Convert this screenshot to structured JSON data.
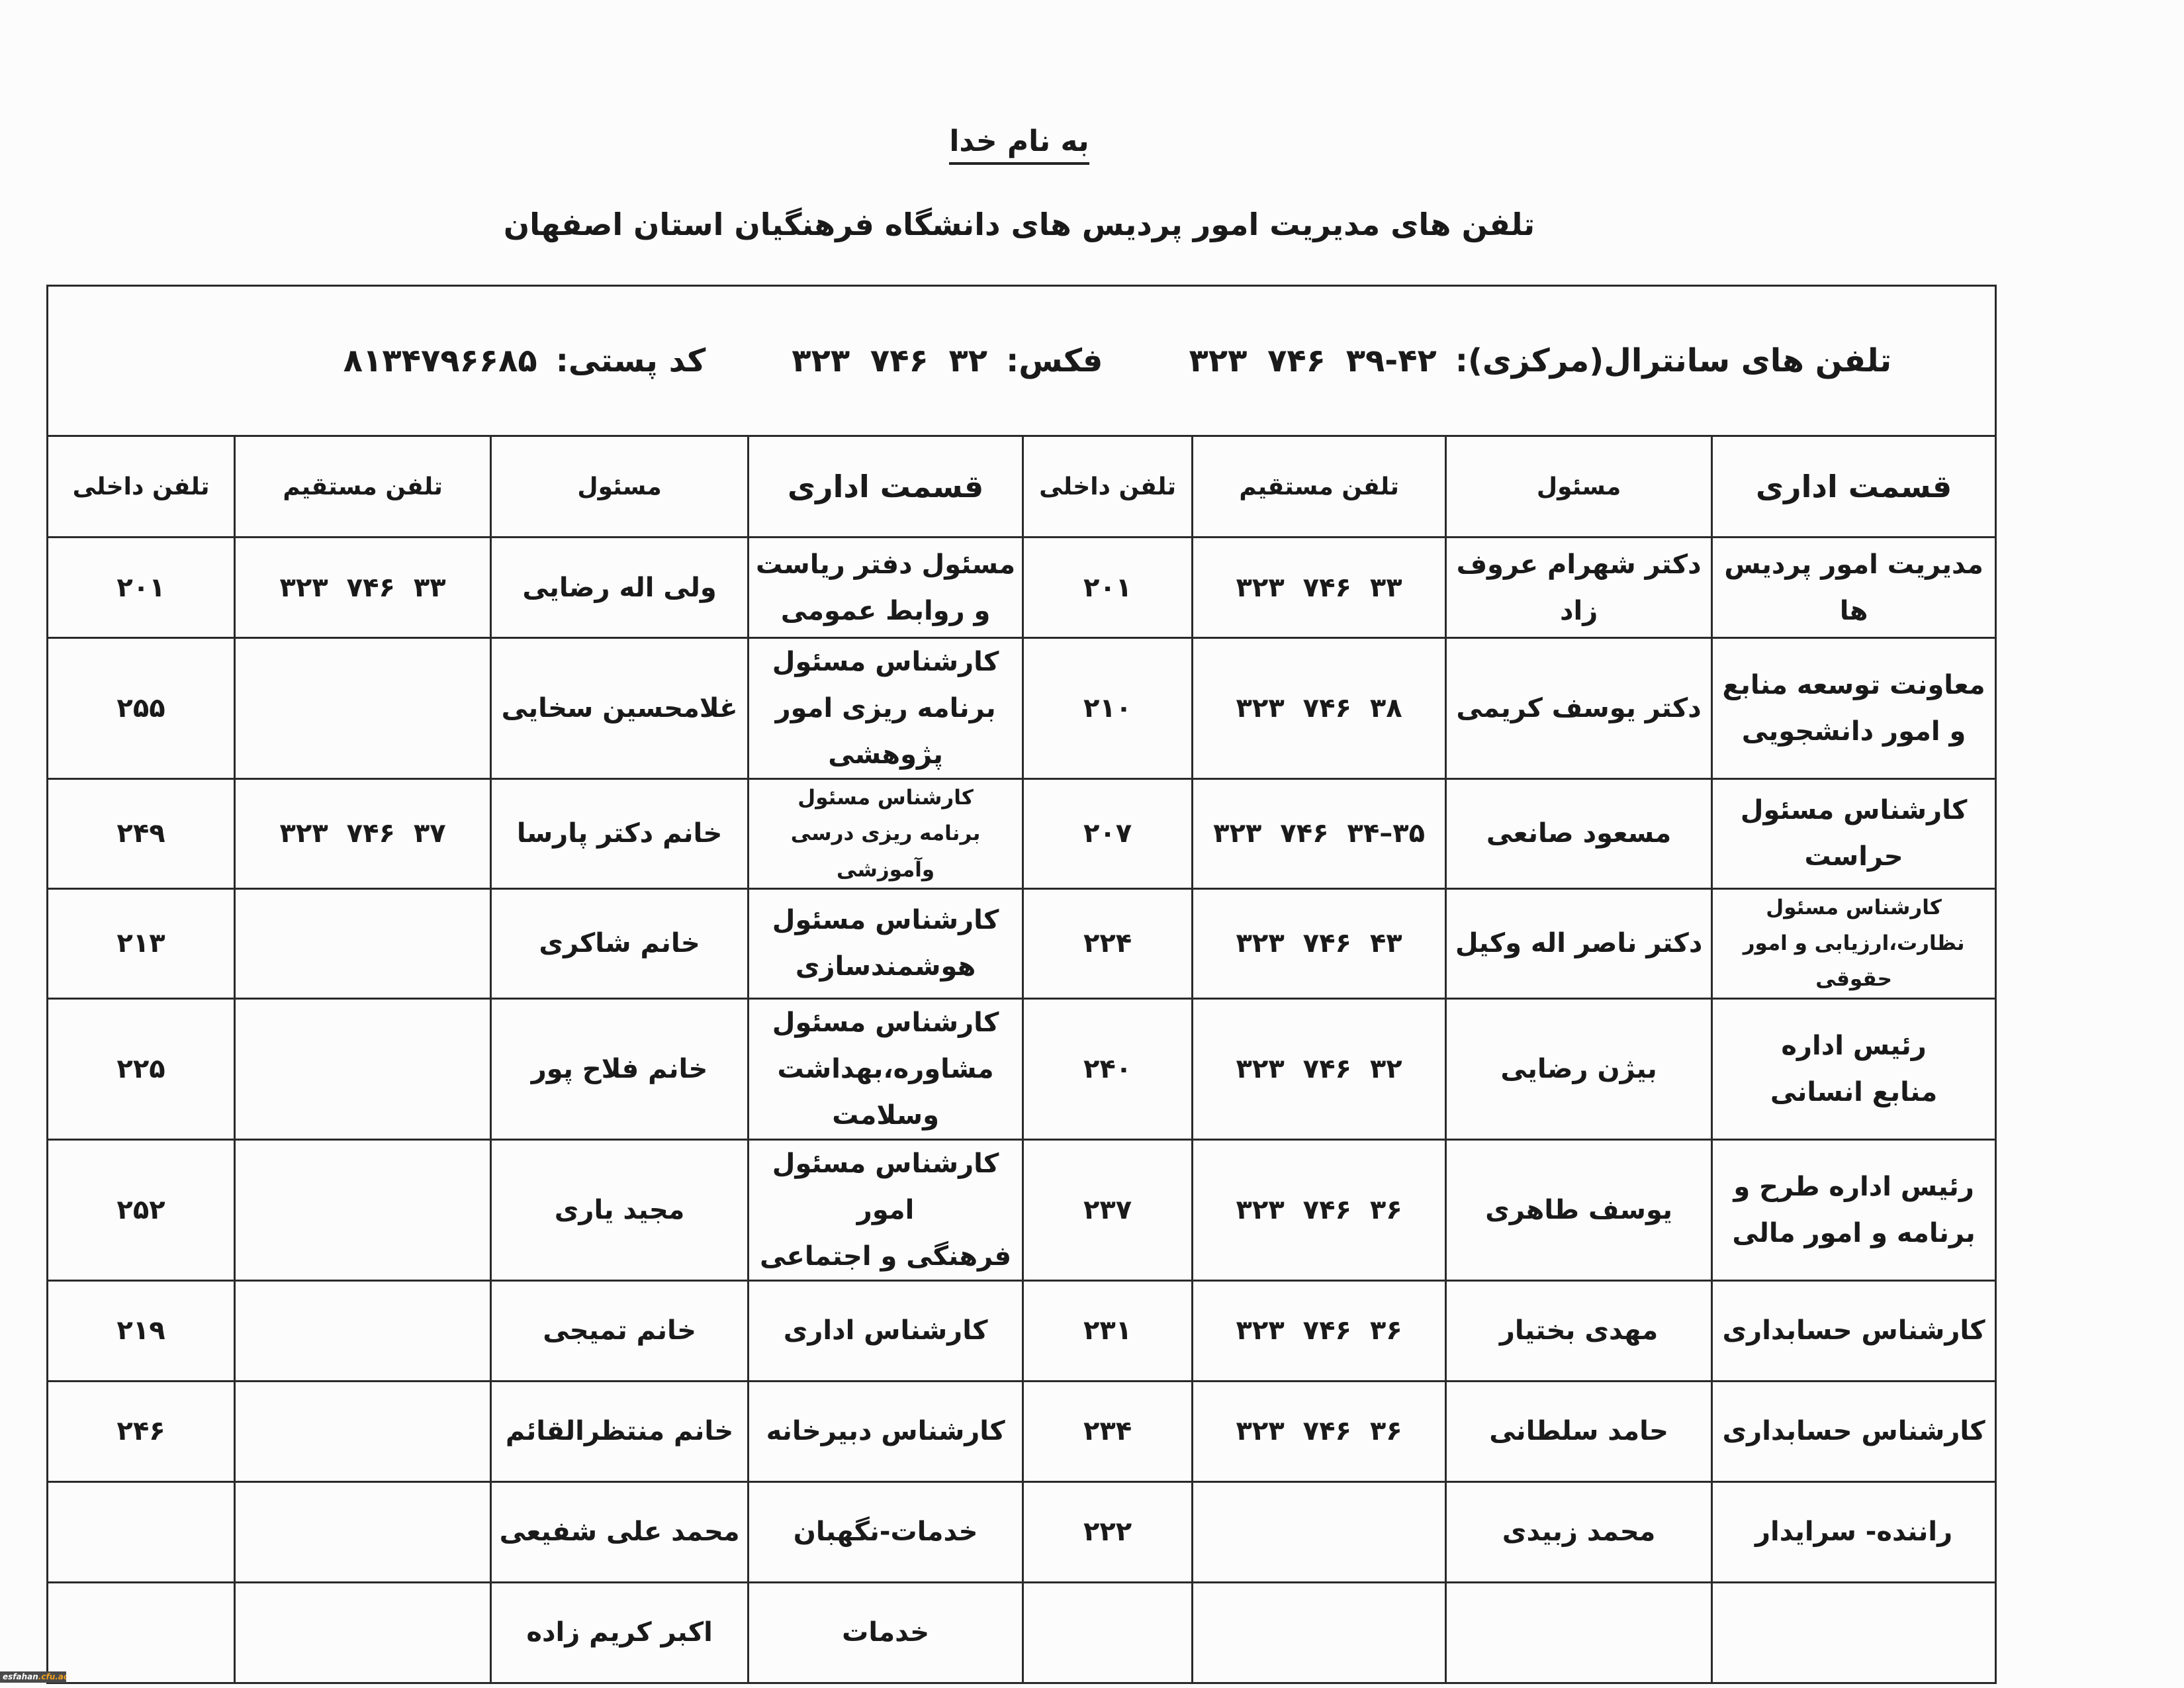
{
  "header": {
    "basmala": "به نام خدا",
    "title": "تلفن های مدیریت امور پردیس های دانشگاه  فرهنگیان استان اصفهان"
  },
  "info": {
    "central_label": "تلفن های سانترال(مرکزی):",
    "central_number": "۳۲۳ ۷۴۶ ۳۹-۴۲",
    "fax_label": "فکس:",
    "fax_number": "۳۲۳ ۷۴۶ ۳۲",
    "postal_label": "کد پستی:",
    "postal_number": "۸۱۳۴۷۹۶۶۸۵"
  },
  "columns": [
    "قسمت اداری",
    "مسئول",
    "تلفن مستقیم",
    "تلفن داخلی",
    "قسمت اداری",
    "مسئول",
    "تلفن مستقیم",
    "تلفن داخلی"
  ],
  "rows": [
    [
      "مدیریت امور پردیس ها",
      "دکتر شهرام عروف زاد",
      "۳۲۳ ۷۴۶ ۳۳",
      "۲۰۱",
      "مسئول دفتر ریاست\nو روابط عمومی",
      "ولی اله رضایی",
      "۳۲۳ ۷۴۶ ۳۳",
      "۲۰۱"
    ],
    [
      "معاونت  توسعه منابع\nو امور دانشجویی",
      "دکتر یوسف کریمی",
      "۳۲۳ ۷۴۶ ۳۸",
      "۲۱۰",
      "کارشناس مسئول\nبرنامه ریزی امور پژوهشی",
      "غلامحسین سخایی",
      "",
      "۲۵۵"
    ],
    [
      "کارشناس مسئول\nحراست",
      "مسعود صانعی",
      "۳۲۳ ۷۴۶ ۳۴–۳۵",
      "۲۰۷",
      "کارشناس مسئول\nبرنامه ریزی درسی وآموزشی",
      "خانم دکتر پارسا",
      "۳۲۳ ۷۴۶ ۳۷",
      "۲۴۹"
    ],
    [
      "کارشناس مسئول\nنظارت،ارزیابی و امور حقوقی",
      "دکتر ناصر   اله وکیل",
      "۳۲۳ ۷۴۶ ۴۳",
      "۲۲۴",
      "کارشناس مسئول\nهوشمندسازی",
      "خانم شاکری",
      "",
      "۲۱۳"
    ],
    [
      "رئیس اداره\nمنابع انسانی",
      "بیژن رضایی",
      "۳۲۳ ۷۴۶ ۳۲",
      "۲۴۰",
      "کارشناس مسئول\nمشاوره،بهداشت وسلامت",
      "خانم فلاح پور",
      "",
      "۲۲۵"
    ],
    [
      "رئیس اداره طرح و\nبرنامه و امور  مالی",
      "یوسف طاهری",
      "۳۲۳ ۷۴۶ ۳۶",
      "۲۳۷",
      "کارشناس مسئول امور\nفرهنگی و اجتماعی",
      "مجید یاری",
      "",
      "۲۵۲"
    ],
    [
      "کارشناس حسابداری",
      "مهدی بختیار",
      "۳۲۳ ۷۴۶ ۳۶",
      "۲۳۱",
      "کارشناس اداری",
      "خانم تمیجی",
      "",
      "۲۱۹"
    ],
    [
      "کارشناس حسابداری",
      "حامد سلطانی",
      "۳۲۳ ۷۴۶ ۳۶",
      "۲۳۴",
      "کارشناس دبیرخانه",
      "خانم منتظرالقائم",
      "",
      "۲۴۶"
    ],
    [
      "راننده- سرایدار",
      "محمد زبیدی",
      "",
      "۲۲۲",
      "خدمات-نگهبان",
      "محمد علی شفیعی",
      "",
      ""
    ],
    [
      "",
      "",
      "",
      "",
      "خدمات",
      "اکبر کریم زاده",
      "",
      ""
    ]
  ],
  "watermark": {
    "part1": "esfahan",
    "part2": ".cfu.ac.ir"
  }
}
